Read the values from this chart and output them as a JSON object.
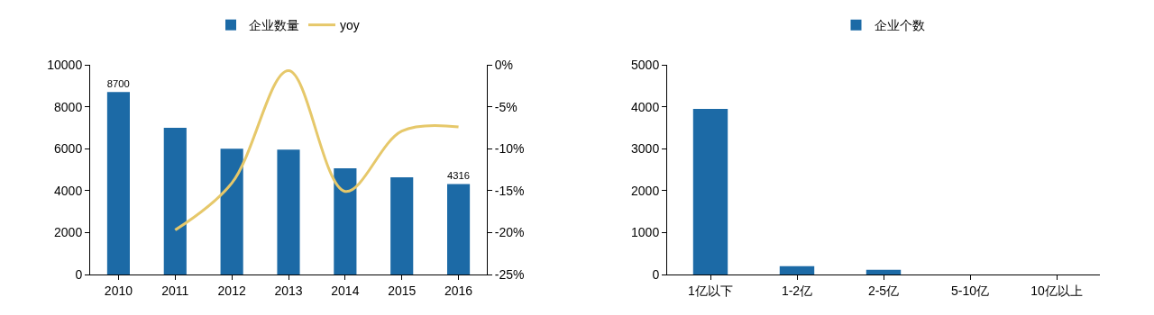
{
  "chart_data": [
    {
      "type": "bar",
      "categories": [
        "2010",
        "2011",
        "2012",
        "2013",
        "2014",
        "2015",
        "2016"
      ],
      "series": [
        {
          "name": "企业数量",
          "color": "#1c6aa6",
          "values": [
            8700,
            7000,
            6000,
            5950,
            5060,
            4640,
            4316
          ],
          "value_labels": [
            "8700",
            null,
            null,
            null,
            null,
            null,
            "4316"
          ]
        },
        {
          "name": "yoy",
          "type": "line",
          "axis": "y2",
          "color": "#e6c86a",
          "values": [
            null,
            -19.7,
            -14.1,
            -0.7,
            -15.1,
            -7.9,
            -7.4
          ]
        }
      ],
      "ylim": [
        0,
        10000
      ],
      "yticks": [
        0,
        2000,
        4000,
        6000,
        8000,
        10000
      ],
      "y2lim": [
        -25,
        0
      ],
      "y2ticks": [
        {
          "value": -25,
          "label": "-25%"
        },
        {
          "value": -20,
          "label": "-20%"
        },
        {
          "value": -15,
          "label": "-15%"
        },
        {
          "value": -10,
          "label": "-10%"
        },
        {
          "value": -5,
          "label": "-5%"
        },
        {
          "value": 0,
          "label": "0%"
        }
      ],
      "grid": false,
      "legend": "top"
    },
    {
      "type": "bar",
      "categories": [
        "1亿以下",
        "1-2亿",
        "2-5亿",
        "5-10亿",
        "10亿以上"
      ],
      "series": [
        {
          "name": "企业个数",
          "color": "#1c6aa6",
          "values": [
            3950,
            200,
            110,
            0,
            0
          ]
        }
      ],
      "ylim": [
        0,
        5000
      ],
      "yticks": [
        0,
        1000,
        2000,
        3000,
        4000,
        5000
      ],
      "grid": false,
      "legend": "top"
    }
  ]
}
